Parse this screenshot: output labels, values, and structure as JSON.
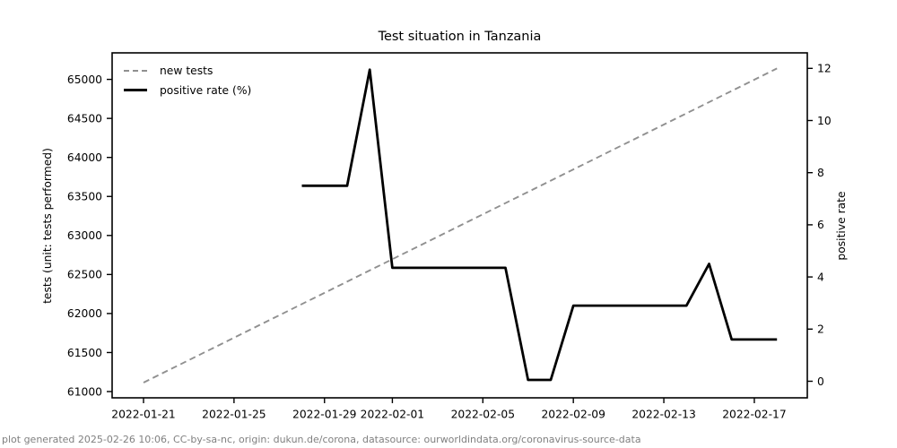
{
  "chart_data": {
    "type": "line",
    "title": "Test situation in Tanzania",
    "footer": "plot generated 2025-02-26 10:06, CC-by-sa-nc, origin: dukun.de/corona, datasource: ourworldindata.org/coronavirus-source-data",
    "grid": false,
    "legend_position": "upper left",
    "x_axis": {
      "tick_labels": [
        "2022-01-21",
        "2022-01-25",
        "2022-01-29",
        "2022-02-01",
        "2022-02-05",
        "2022-02-09",
        "2022-02-13",
        "2022-02-17"
      ]
    },
    "left_y_axis": {
      "label": "tests (unit: tests performed)",
      "ticks": [
        61000,
        61500,
        62000,
        62500,
        63000,
        63500,
        64000,
        64500,
        65000
      ]
    },
    "right_y_axis": {
      "label": "positive rate",
      "ticks": [
        0,
        2,
        4,
        6,
        8,
        10,
        12
      ]
    },
    "series": [
      {
        "name": "new tests",
        "axis": "left",
        "line_style": "dashed",
        "color": "#909090",
        "points": [
          {
            "date": "2022-01-21",
            "value": 61115
          },
          {
            "date": "2022-02-18",
            "value": 65140
          }
        ]
      },
      {
        "name": "positive rate (%)",
        "axis": "right",
        "line_style": "solid",
        "color": "#000000",
        "points": [
          {
            "date": "2022-01-28",
            "value": 7.5
          },
          {
            "date": "2022-01-30",
            "value": 7.5
          },
          {
            "date": "2022-01-31",
            "value": 11.95
          },
          {
            "date": "2022-02-01",
            "value": 4.35
          },
          {
            "date": "2022-02-06",
            "value": 4.35
          },
          {
            "date": "2022-02-07",
            "value": 0.05
          },
          {
            "date": "2022-02-08",
            "value": 0.05
          },
          {
            "date": "2022-02-09",
            "value": 2.9
          },
          {
            "date": "2022-02-14",
            "value": 2.9
          },
          {
            "date": "2022-02-15",
            "value": 4.5
          },
          {
            "date": "2022-02-16",
            "value": 1.6
          },
          {
            "date": "2022-02-18",
            "value": 1.6
          }
        ]
      }
    ]
  }
}
